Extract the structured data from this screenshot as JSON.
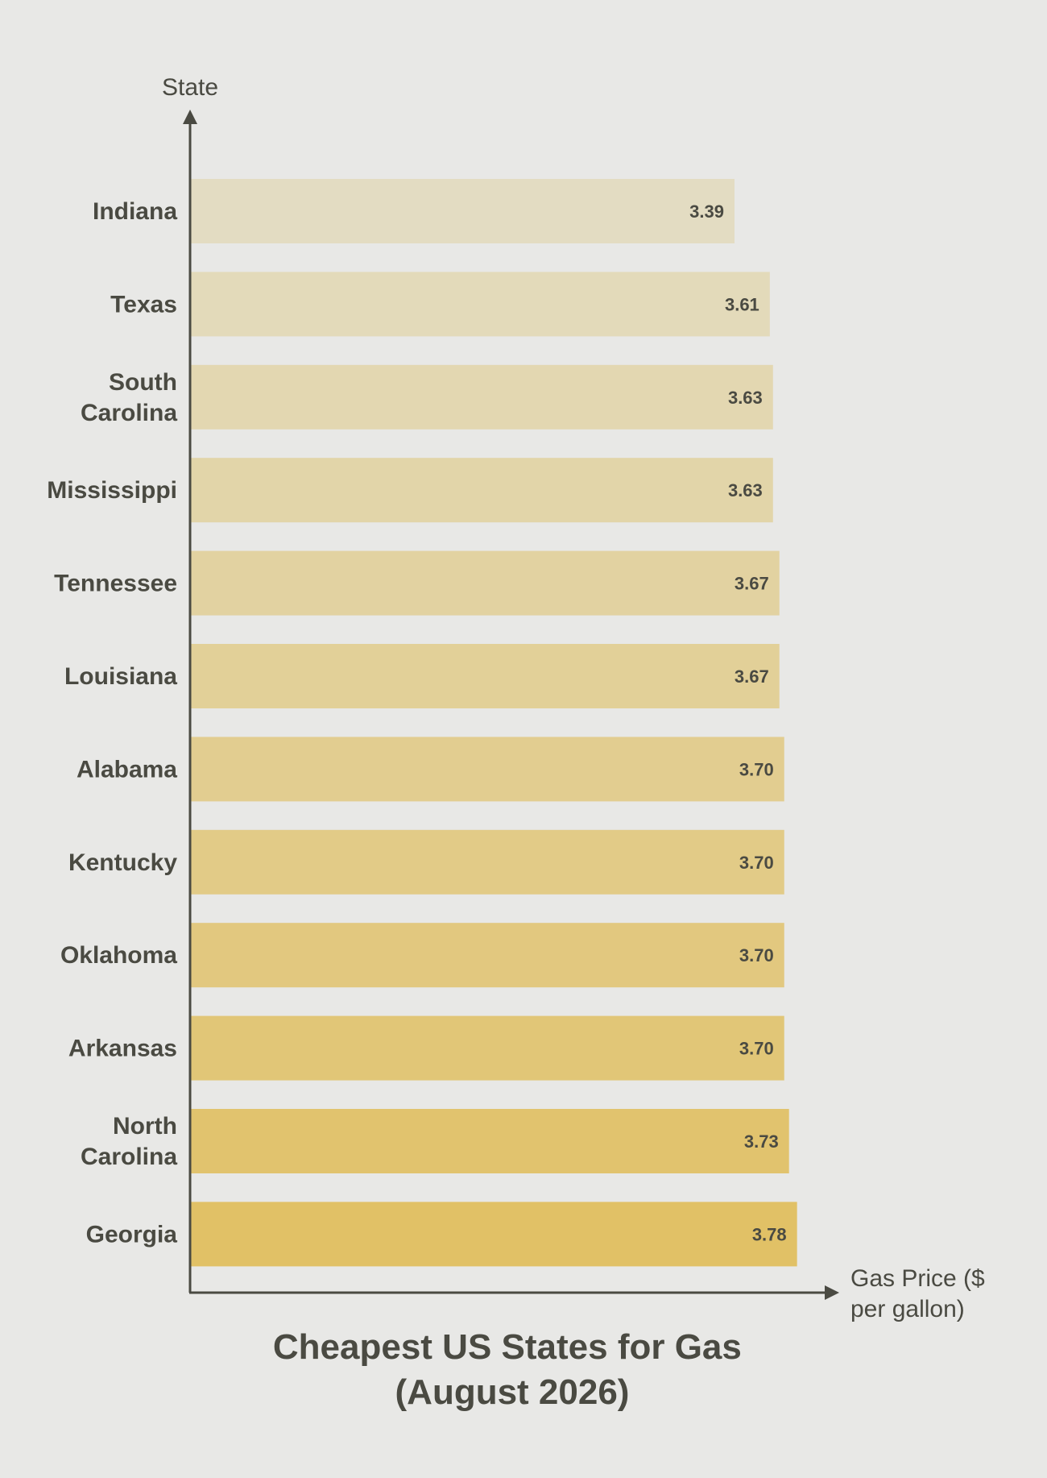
{
  "chart_data": {
    "type": "bar",
    "orientation": "horizontal",
    "title_lines": [
      "Cheapest US States for Gas",
      "(August 2026)"
    ],
    "xlabel_lines": [
      "Gas Price ($",
      "per gallon)"
    ],
    "ylabel": "State",
    "categories": [
      "Indiana",
      "Texas",
      "South Carolina",
      "Mississippi",
      "Tennessee",
      "Louisiana",
      "Alabama",
      "Kentucky",
      "Oklahoma",
      "Arkansas",
      "North Carolina",
      "Georgia"
    ],
    "category_lines": [
      [
        "Indiana"
      ],
      [
        "Texas"
      ],
      [
        "South",
        "Carolina"
      ],
      [
        "Mississippi"
      ],
      [
        "Tennessee"
      ],
      [
        "Louisiana"
      ],
      [
        "Alabama"
      ],
      [
        "Kentucky"
      ],
      [
        "Oklahoma"
      ],
      [
        "Arkansas"
      ],
      [
        "North",
        "Carolina"
      ],
      [
        "Georgia"
      ]
    ],
    "values": [
      3.39,
      3.61,
      3.63,
      3.63,
      3.67,
      3.67,
      3.7,
      3.7,
      3.7,
      3.7,
      3.73,
      3.78
    ],
    "value_labels": [
      "3.39",
      "3.61",
      "3.63",
      "3.63",
      "3.67",
      "3.67",
      "3.70",
      "3.70",
      "3.70",
      "3.70",
      "3.73",
      "3.78"
    ],
    "xlim": [
      0,
      4.1
    ],
    "grid": false,
    "legend": "none",
    "colors": {
      "bar_start": "#e3dcc2",
      "bar_end": "#e1c166",
      "axis": "#4a4a42",
      "text": "#4a4a42",
      "background": "#e8e8e6"
    }
  }
}
